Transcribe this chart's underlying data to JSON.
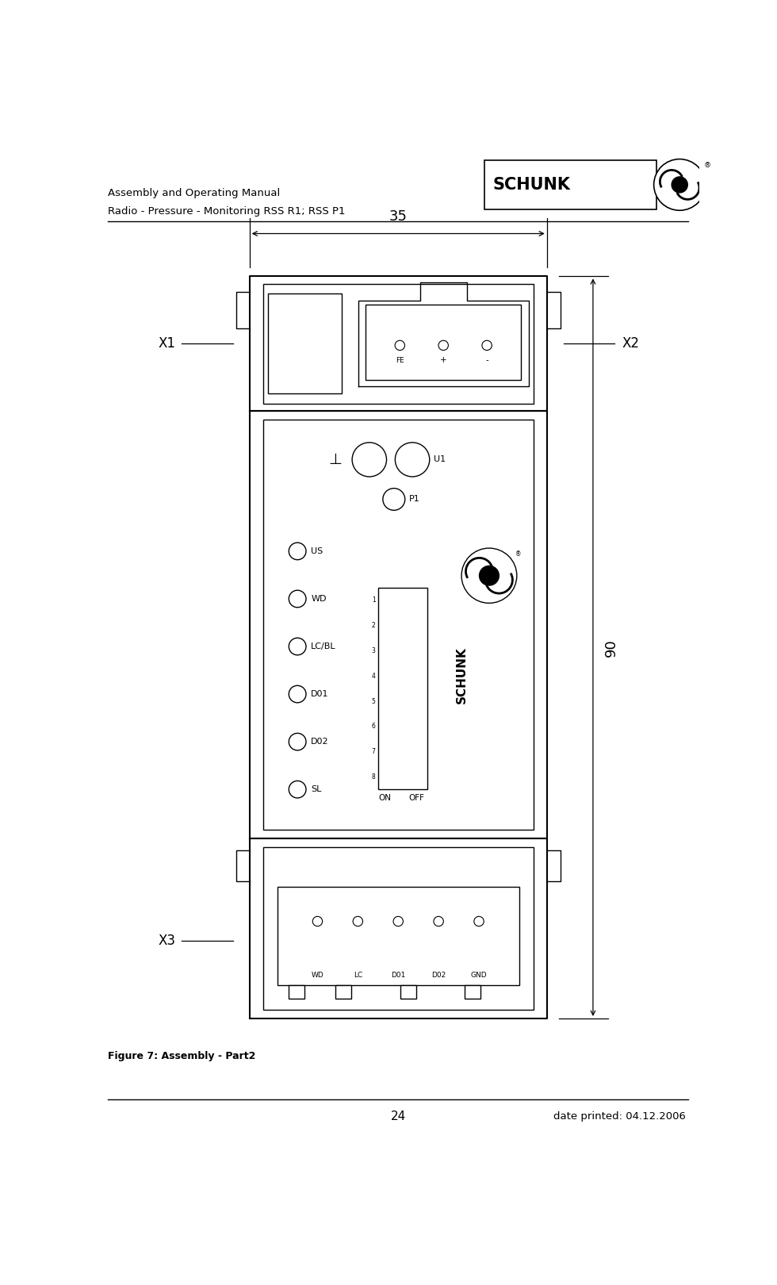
{
  "header_line1": "Assembly and Operating Manual",
  "header_line2": "Radio - Pressure - Monitoring RSS R1; RSS P1",
  "footer_page": "24",
  "footer_date": "date printed: 04.12.2006",
  "figure_caption": "Figure 7: Assembly - Part2",
  "dim_35": "35",
  "dim_90": "90",
  "label_X1": "X1",
  "label_X2": "X2",
  "label_X3": "X3",
  "bg_color": "#ffffff",
  "line_color": "#000000"
}
